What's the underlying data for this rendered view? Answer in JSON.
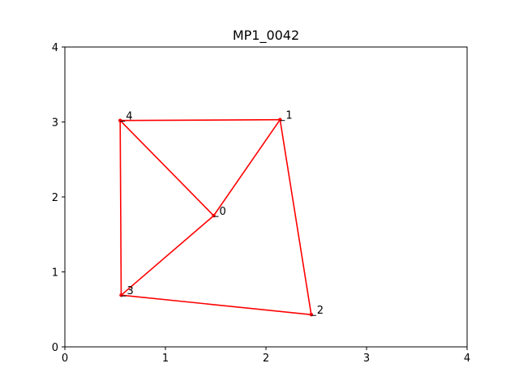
{
  "chart_data": {
    "type": "scatter",
    "title": "MP1_0042",
    "xlabel": "",
    "ylabel": "",
    "xlim": [
      0,
      4
    ],
    "ylim": [
      0,
      4
    ],
    "x_ticks": [
      "0",
      "1",
      "2",
      "3",
      "4"
    ],
    "y_ticks": [
      "0",
      "1",
      "2",
      "3",
      "4"
    ],
    "grid": false,
    "line_color": "#ff0000",
    "points": [
      {
        "label": "0",
        "x": 1.48,
        "y": 1.75
      },
      {
        "label": "1",
        "x": 2.14,
        "y": 3.03
      },
      {
        "label": "2",
        "x": 2.45,
        "y": 0.43
      },
      {
        "label": "3",
        "x": 0.56,
        "y": 0.69
      },
      {
        "label": "4",
        "x": 0.55,
        "y": 3.02
      }
    ],
    "edges": [
      [
        4,
        1
      ],
      [
        1,
        2
      ],
      [
        2,
        3
      ],
      [
        3,
        4
      ],
      [
        4,
        0
      ],
      [
        0,
        1
      ],
      [
        0,
        3
      ]
    ]
  }
}
